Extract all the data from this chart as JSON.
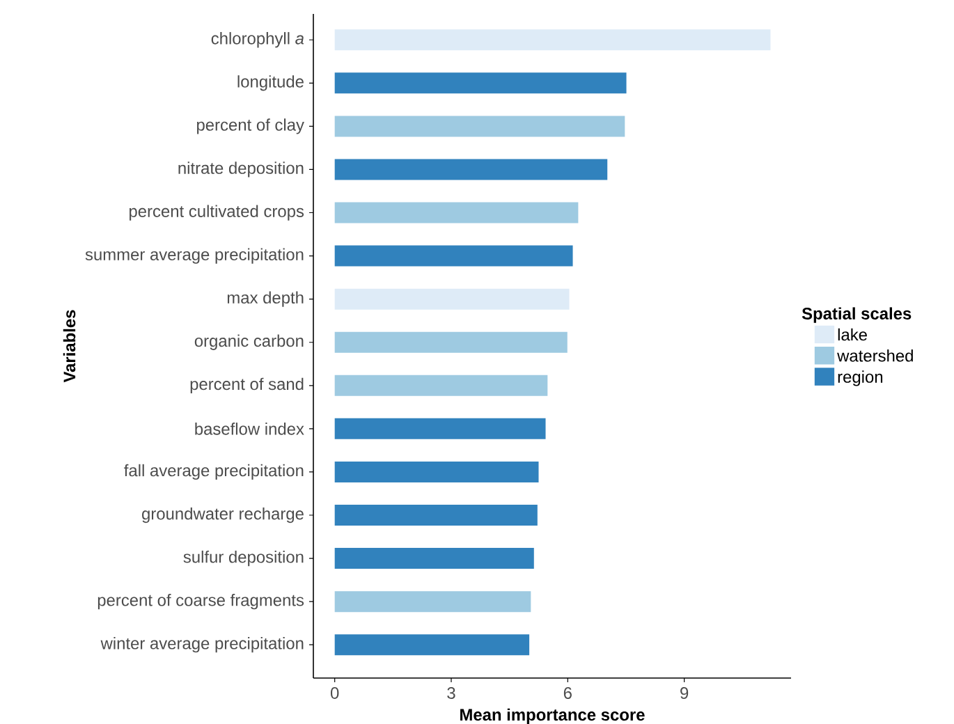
{
  "chart_data": {
    "type": "bar",
    "orientation": "horizontal",
    "xlabel": "Mean importance score",
    "ylabel": "Variables",
    "legend_title": "Spatial scales",
    "legend": "right",
    "categories": [
      "chlorophyll *a*",
      "longitude",
      "percent of clay",
      "nitrate deposition",
      "percent cultivated crops",
      "summer average precipitation",
      "max depth",
      "organic carbon",
      "percent of sand",
      "baseflow index",
      "fall average precipitation",
      "groundwater recharge",
      "sulfur deposition",
      "percent of coarse fragments",
      "winter average precipitation"
    ],
    "series": [
      {
        "name": "lake",
        "color": "#deebf7",
        "values": [
          11.22,
          null,
          null,
          null,
          null,
          null,
          6.04,
          null,
          null,
          null,
          null,
          null,
          null,
          null,
          null
        ]
      },
      {
        "name": "watershed",
        "color": "#9ecae1",
        "values": [
          null,
          null,
          7.47,
          null,
          6.27,
          null,
          null,
          5.99,
          5.48,
          null,
          null,
          null,
          null,
          5.05,
          null
        ]
      },
      {
        "name": "region",
        "color": "#3182bd",
        "values": [
          null,
          7.51,
          null,
          7.02,
          null,
          6.13,
          null,
          null,
          null,
          5.43,
          5.25,
          5.22,
          5.13,
          null,
          5.01
        ]
      }
    ],
    "xlim": [
      -0.55,
      11.75
    ],
    "xticks": [
      0,
      3,
      6,
      9
    ]
  }
}
